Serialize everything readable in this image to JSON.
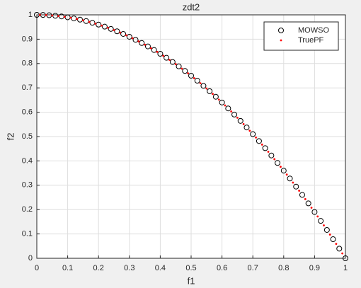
{
  "chart_data": {
    "type": "scatter",
    "title": "zdt2",
    "x_label": "f1",
    "y_label": "f2",
    "xlim": [
      0,
      1
    ],
    "ylim": [
      0,
      1
    ],
    "xticks": [
      0,
      0.1,
      0.2,
      0.3,
      0.4,
      0.5,
      0.6,
      0.7,
      0.8,
      0.9,
      1
    ],
    "yticks": [
      0,
      0.1,
      0.2,
      0.3,
      0.4,
      0.5,
      0.6,
      0.7,
      0.8,
      0.9,
      1
    ],
    "grid": true,
    "legend": "northeast",
    "series": [
      {
        "name": "MOWSO",
        "color": "#000000",
        "marker": "circle",
        "x": [
          0,
          0.02,
          0.04,
          0.06,
          0.08,
          0.1,
          0.12,
          0.14,
          0.16,
          0.18,
          0.2,
          0.22,
          0.24,
          0.26,
          0.28,
          0.3,
          0.32,
          0.34,
          0.36,
          0.38,
          0.4,
          0.42,
          0.44,
          0.46,
          0.48,
          0.5,
          0.52,
          0.54,
          0.56,
          0.58,
          0.6,
          0.62,
          0.64,
          0.66,
          0.68,
          0.7,
          0.72,
          0.74,
          0.76,
          0.78,
          0.8,
          0.82,
          0.84,
          0.86,
          0.88,
          0.9,
          0.92,
          0.94,
          0.96,
          0.98,
          1
        ],
        "values": [
          1,
          0.9996,
          0.9984,
          0.9964,
          0.9936,
          0.99,
          0.9856,
          0.9804,
          0.9744,
          0.9676,
          0.96,
          0.9516,
          0.9424,
          0.9324,
          0.9216,
          0.91,
          0.8976,
          0.8844,
          0.8704,
          0.8556,
          0.84,
          0.8236,
          0.8064,
          0.7884,
          0.7696,
          0.75,
          0.7296,
          0.7084,
          0.6864,
          0.6636,
          0.64,
          0.6156,
          0.5904,
          0.5644,
          0.5376,
          0.51,
          0.4816,
          0.4524,
          0.4224,
          0.3916,
          0.36,
          0.3276,
          0.2944,
          0.2604,
          0.2256,
          0.19,
          0.1536,
          0.1164,
          0.0784,
          0.0396,
          0
        ]
      },
      {
        "name": "TruePF",
        "color": "#ff0000",
        "marker": "dot",
        "x": [
          0.01,
          0.03,
          0.05,
          0.07,
          0.09,
          0.11,
          0.13,
          0.15,
          0.17,
          0.19,
          0.21,
          0.23,
          0.25,
          0.27,
          0.29,
          0.31,
          0.33,
          0.35,
          0.37,
          0.39,
          0.41,
          0.43,
          0.45,
          0.47,
          0.49,
          0.51,
          0.53,
          0.55,
          0.57,
          0.59,
          0.61,
          0.63,
          0.65,
          0.67,
          0.69,
          0.71,
          0.73,
          0.75,
          0.77,
          0.79,
          0.81,
          0.83,
          0.85,
          0.87,
          0.89,
          0.91,
          0.93,
          0.95,
          0.97,
          0.99
        ],
        "values": [
          0.9999,
          0.9991,
          0.9975,
          0.9951,
          0.9919,
          0.9879,
          0.9831,
          0.9775,
          0.9711,
          0.9639,
          0.9559,
          0.9471,
          0.9375,
          0.9271,
          0.9159,
          0.9039,
          0.8911,
          0.8775,
          0.8631,
          0.8479,
          0.8319,
          0.8151,
          0.7975,
          0.7791,
          0.7599,
          0.7399,
          0.7191,
          0.6975,
          0.6751,
          0.6519,
          0.6279,
          0.6031,
          0.5775,
          0.5511,
          0.5239,
          0.4959,
          0.4671,
          0.4375,
          0.4071,
          0.3759,
          0.3439,
          0.3111,
          0.2775,
          0.2431,
          0.2079,
          0.1719,
          0.1351,
          0.0975,
          0.0591,
          0.0199
        ]
      }
    ]
  }
}
